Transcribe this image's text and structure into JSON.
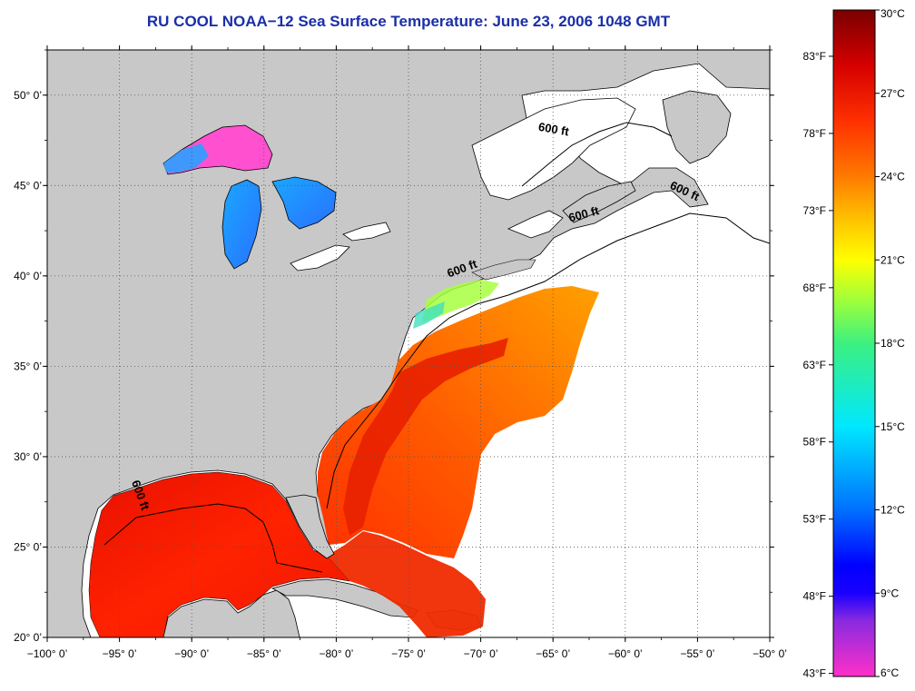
{
  "title": "RU COOL  NOAA−12  Sea Surface Temperature:  June 23, 2006 1048 GMT",
  "map": {
    "lon_range": [
      -100,
      -50
    ],
    "lat_range": [
      20,
      52.5
    ],
    "lon_ticks": [
      {
        "value": -100,
        "label": "−100° 0’"
      },
      {
        "value": -95,
        "label": "−95° 0’"
      },
      {
        "value": -90,
        "label": "−90° 0’"
      },
      {
        "value": -85,
        "label": "−85° 0’"
      },
      {
        "value": -80,
        "label": "−80° 0’"
      },
      {
        "value": -75,
        "label": "−75° 0’"
      },
      {
        "value": -70,
        "label": "−70° 0’"
      },
      {
        "value": -65,
        "label": "−65° 0’"
      },
      {
        "value": -60,
        "label": "−60° 0’"
      },
      {
        "value": -55,
        "label": "−55° 0’"
      },
      {
        "value": -50,
        "label": "−50° 0’"
      }
    ],
    "lat_ticks": [
      {
        "value": 50,
        "label": "50° 0’"
      },
      {
        "value": 45,
        "label": "45° 0’"
      },
      {
        "value": 40,
        "label": "40° 0’"
      },
      {
        "value": 35,
        "label": "35° 0’"
      },
      {
        "value": 30,
        "label": "30° 0’"
      },
      {
        "value": 25,
        "label": "25° 0’"
      },
      {
        "value": 20,
        "label": "20° 0’"
      }
    ],
    "gridlines": "dotted",
    "colors": {
      "land": "#c8c8c8",
      "ocean_no_data": "#ffffff",
      "coastline": "#000000",
      "title": "#1a2ea8"
    },
    "contour_labels": [
      {
        "text": "600 ft",
        "lon": -65,
        "lat": 47.9
      },
      {
        "text": "600 ft",
        "lon": -56,
        "lat": 44.5
      },
      {
        "text": "600 ft",
        "lon": -62.8,
        "lat": 43.2
      },
      {
        "text": "600 ft",
        "lon": -71.2,
        "lat": 40.2
      },
      {
        "text": "600 ft",
        "lon": -93.8,
        "lat": 27.8
      }
    ]
  },
  "colorbar": {
    "celsius_labels": [
      "30°C",
      "27°C",
      "24°C",
      "21°C",
      "18°C",
      "15°C",
      "12°C",
      "9°C",
      "6°C"
    ],
    "celsius_values": [
      30,
      27,
      24,
      21,
      18,
      15,
      12,
      9,
      6
    ],
    "fahrenheit_labels": [
      "83°F",
      "78°F",
      "73°F",
      "68°F",
      "63°F",
      "58°F",
      "53°F",
      "48°F",
      "43°F"
    ],
    "fahrenheit_values": [
      83,
      78,
      73,
      68,
      63,
      58,
      53,
      48,
      43
    ],
    "range_c": [
      6,
      30
    ],
    "gradient_stops": [
      {
        "c": 30,
        "color": "#7a0000"
      },
      {
        "c": 28,
        "color": "#d50000"
      },
      {
        "c": 26,
        "color": "#ff3000"
      },
      {
        "c": 24,
        "color": "#ff7a00"
      },
      {
        "c": 22.5,
        "color": "#ffc000"
      },
      {
        "c": 21,
        "color": "#ffff00"
      },
      {
        "c": 19.5,
        "color": "#9cff3c"
      },
      {
        "c": 18,
        "color": "#3cf080"
      },
      {
        "c": 15,
        "color": "#00e8ff"
      },
      {
        "c": 12,
        "color": "#0070ff"
      },
      {
        "c": 10,
        "color": "#0000ff"
      },
      {
        "c": 9,
        "color": "#1a00ff"
      },
      {
        "c": 8,
        "color": "#8a2ae0"
      },
      {
        "c": 6,
        "color": "#ff30c8"
      }
    ]
  }
}
